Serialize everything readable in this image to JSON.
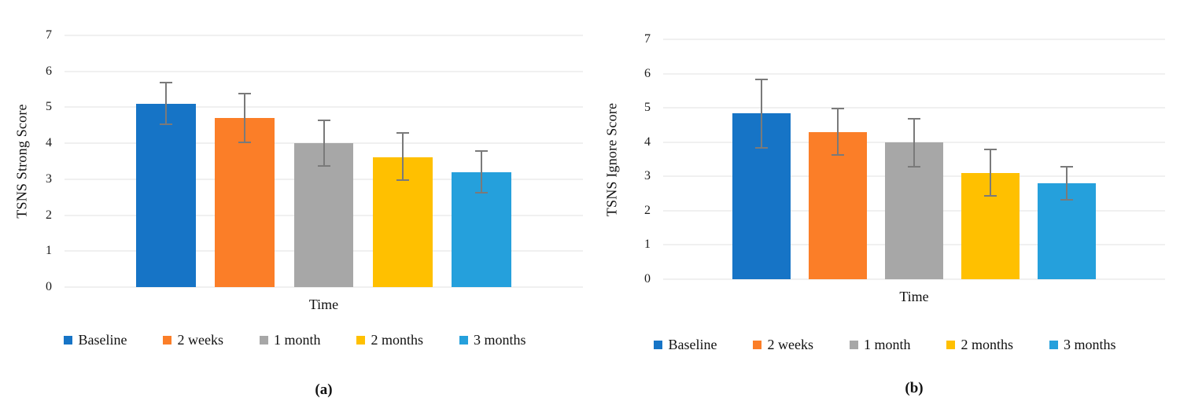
{
  "chart_data": [
    {
      "type": "bar",
      "panel": "a",
      "caption": "(a)",
      "ylabel": "TSNS Strong Score",
      "xlabel": "Time",
      "ylim": [
        0,
        7
      ],
      "yticks": [
        0,
        1,
        2,
        3,
        4,
        5,
        6,
        7
      ],
      "grid": true,
      "legend_position": "bottom",
      "categories": [
        "Baseline",
        "2 weeks",
        "1 month",
        "2 months",
        "3 months"
      ],
      "series_colors": [
        "#1674c6",
        "#fb7e28",
        "#a7a7a7",
        "#ffc000",
        "#25a0dc"
      ],
      "values": [
        5.1,
        4.7,
        4.0,
        3.6,
        3.2
      ],
      "error_low": [
        4.5,
        4.0,
        3.35,
        2.95,
        2.6
      ],
      "error_high": [
        5.7,
        5.4,
        4.65,
        4.3,
        3.8
      ]
    },
    {
      "type": "bar",
      "panel": "b",
      "caption": "(b)",
      "ylabel": "TSNS Ignore Score",
      "xlabel": "Time",
      "ylim": [
        0,
        7
      ],
      "yticks": [
        0,
        1,
        2,
        3,
        4,
        5,
        6,
        7
      ],
      "grid": true,
      "legend_position": "bottom",
      "categories": [
        "Baseline",
        "2 weeks",
        "1 month",
        "2 months",
        "3 months"
      ],
      "series_colors": [
        "#1674c6",
        "#fb7e28",
        "#a7a7a7",
        "#ffc000",
        "#25a0dc"
      ],
      "values": [
        4.85,
        4.3,
        4.0,
        3.1,
        2.8
      ],
      "error_low": [
        3.8,
        3.6,
        3.25,
        2.4,
        2.3
      ],
      "error_high": [
        5.85,
        5.0,
        4.7,
        3.8,
        3.3
      ]
    }
  ],
  "style": {
    "gridline_color": "#e2e2e2",
    "error_bar_color": "#7a7a7a",
    "background": "#ffffff"
  }
}
